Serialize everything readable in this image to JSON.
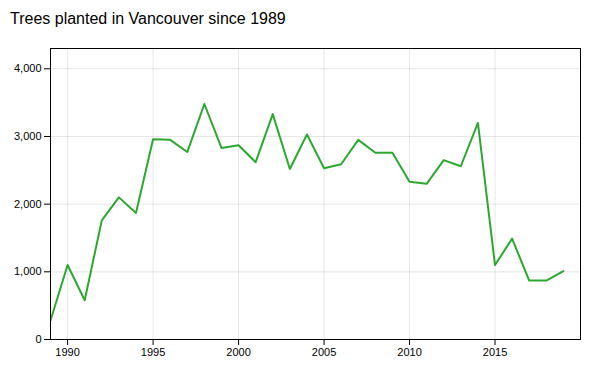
{
  "chart_data": {
    "type": "line",
    "title": "Trees planted in Vancouver since 1989",
    "x": [
      1989,
      1990,
      1991,
      1992,
      1993,
      1994,
      1995,
      1996,
      1997,
      1998,
      1999,
      2000,
      2001,
      2002,
      2003,
      2004,
      2005,
      2006,
      2007,
      2008,
      2009,
      2010,
      2011,
      2012,
      2013,
      2014,
      2015,
      2016,
      2017,
      2018,
      2019
    ],
    "values": [
      280,
      1100,
      580,
      1760,
      2100,
      1870,
      2960,
      2950,
      2770,
      3480,
      2830,
      2870,
      2620,
      3330,
      2520,
      3030,
      2530,
      2590,
      2950,
      2760,
      2760,
      2330,
      2300,
      2650,
      2560,
      3200,
      1100,
      1490,
      870,
      870,
      1010
    ],
    "color": "#2ca830",
    "xlim": [
      1989,
      2020
    ],
    "ylim": [
      0,
      4300
    ],
    "xticks": [
      1990,
      1995,
      2000,
      2005,
      2010,
      2015
    ],
    "yticks": [
      0,
      {
        "value": 1000,
        "label": "1,000"
      },
      {
        "value": 2000,
        "label": "2,000"
      },
      {
        "value": 3000,
        "label": "3,000"
      },
      {
        "value": 4000,
        "label": "4,000"
      }
    ],
    "grid": true
  }
}
